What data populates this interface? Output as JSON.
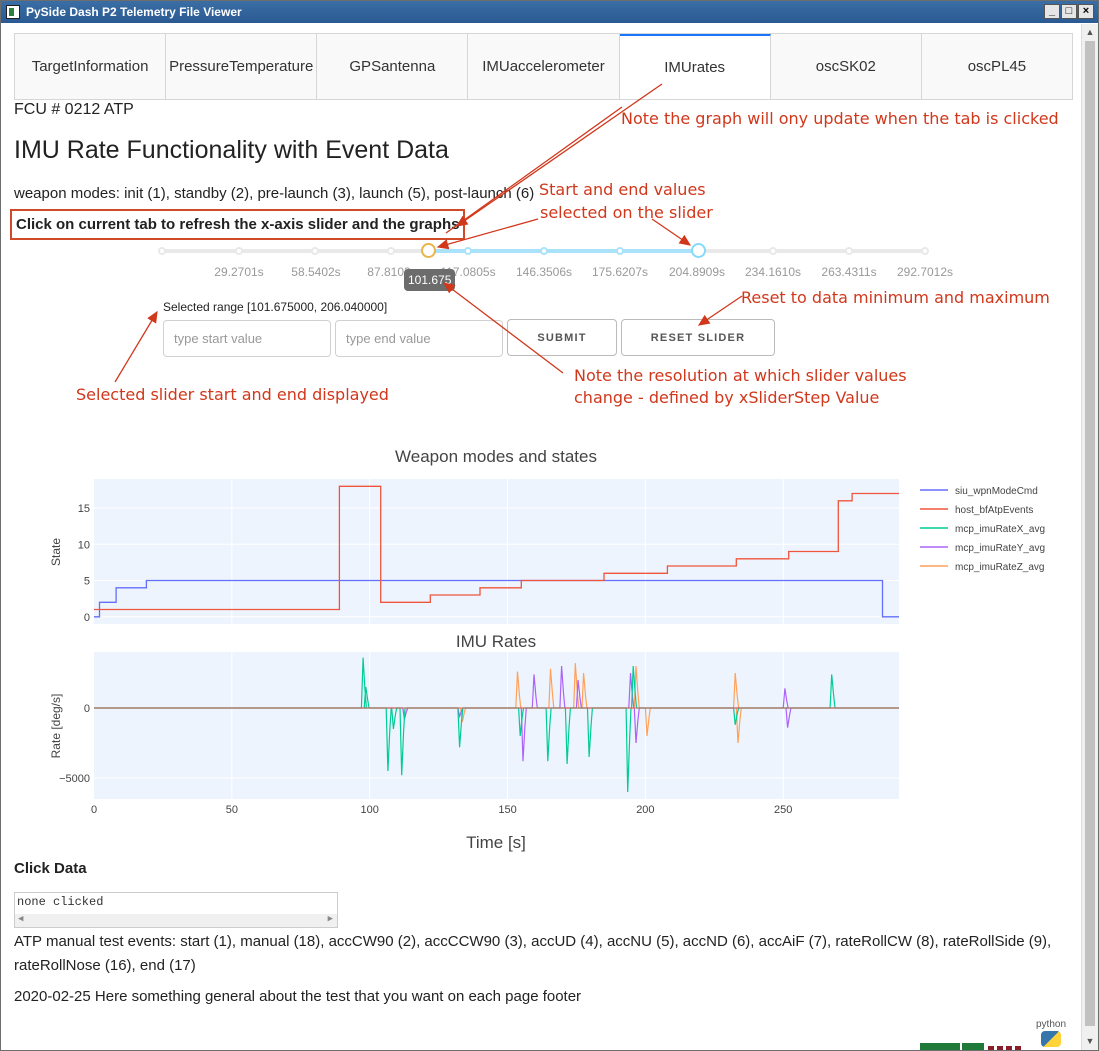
{
  "window": {
    "title": "PySide Dash P2 Telemetry File Viewer",
    "min": "_",
    "max": "□",
    "close": "×"
  },
  "tabs": [
    {
      "label": "TargetInformation",
      "active": false
    },
    {
      "label": "PressureTemperature",
      "active": false
    },
    {
      "label": "GPSantenna",
      "active": false
    },
    {
      "label": "IMUaccelerometer",
      "active": false
    },
    {
      "label": "IMUrates",
      "active": true
    },
    {
      "label": "oscSK02",
      "active": false
    },
    {
      "label": "oscPL45",
      "active": false
    }
  ],
  "header": {
    "fcu": "FCU # 0212 ATP",
    "title": "IMU Rate Functionality with Event Data",
    "modes": "weapon modes: init (1), standby (2), pre-launch (3), launch (5), post-launch (6)",
    "refresh_note": "Click on current tab to refresh the x-axis slider and the graphs"
  },
  "slider": {
    "marks": [
      "29.2701s",
      "58.5402s",
      "87.8103s",
      "117.0805s",
      "146.3506s",
      "175.6207s",
      "204.8909s",
      "234.1610s",
      "263.4311s",
      "292.7012s"
    ],
    "tooltip": "101.675",
    "selected_range": "Selected range [101.675000, 206.040000]",
    "start_placeholder": "type start value",
    "end_placeholder": "type end value",
    "submit_label": "SUBMIT",
    "reset_label": "RESET SLIDER"
  },
  "annotations": {
    "tab_update": "Note the graph will ony update when the tab is clicked",
    "start_end_1": "Start and end values",
    "start_end_2": "selected on the slider",
    "reset": "Reset to data minimum and maximum",
    "selected_display": "Selected slider start and end displayed",
    "resolution_1": "Note the resolution at which slider values",
    "resolution_2": "change - defined by xSliderStep Value"
  },
  "chart_data": [
    {
      "type": "line",
      "title": "Weapon modes and states",
      "ylabel": "State",
      "xlim": [
        0,
        292
      ],
      "ylim": [
        -1,
        19
      ],
      "yticks": [
        0,
        5,
        10,
        15
      ],
      "grid": true,
      "legend_position": "right",
      "series": [
        {
          "name": "siu_wpnModeCmd",
          "color": "#636efa",
          "x": [
            0,
            2,
            2,
            8,
            8,
            19,
            19,
            286,
            286,
            292
          ],
          "y": [
            0,
            0,
            2,
            2,
            4,
            4,
            5,
            5,
            0,
            0
          ]
        },
        {
          "name": "host_bfAtpEvents",
          "color": "#ef553b",
          "x": [
            0,
            3,
            3,
            89,
            89,
            104,
            104,
            122,
            122,
            128,
            128,
            140,
            140,
            155,
            155,
            185,
            185,
            208,
            208,
            233,
            233,
            252,
            252,
            270,
            270,
            275,
            275,
            292
          ],
          "y": [
            1,
            1,
            1,
            1,
            18,
            18,
            2,
            2,
            3,
            3,
            3,
            3,
            4,
            4,
            5,
            5,
            6,
            6,
            7,
            7,
            8,
            8,
            9,
            9,
            16,
            16,
            17,
            17
          ]
        }
      ]
    },
    {
      "type": "line",
      "title": "IMU Rates",
      "xlabel": "Time [s]",
      "ylabel": "Rate [deg/s]",
      "xlim": [
        0,
        292
      ],
      "ylim": [
        -6500,
        4000
      ],
      "xticks": [
        0,
        50,
        100,
        150,
        200,
        250
      ],
      "yticks": [
        -5000,
        0
      ],
      "grid": true,
      "series": [
        {
          "name": "mcp_imuRateX_avg",
          "color": "#00cc96",
          "events": [
            [
              98,
              3600
            ],
            [
              99,
              1500
            ],
            [
              107,
              -4500
            ],
            [
              109,
              -1500
            ],
            [
              112,
              -4800
            ],
            [
              133,
              -2800
            ],
            [
              155,
              -2000
            ],
            [
              165,
              -3800
            ],
            [
              172,
              -4000
            ],
            [
              180,
              -3500
            ],
            [
              194,
              -6000
            ],
            [
              196,
              3000
            ],
            [
              233,
              -1200
            ],
            [
              268,
              2400
            ]
          ]
        },
        {
          "name": "mcp_imuRateY_avg",
          "color": "#ab63fa",
          "events": [
            [
              113,
              -800
            ],
            [
              133,
              -600
            ],
            [
              156,
              -3800
            ],
            [
              160,
              2400
            ],
            [
              170,
              3000
            ],
            [
              176,
              2000
            ],
            [
              195,
              2500
            ],
            [
              197,
              -2500
            ],
            [
              251,
              1400
            ],
            [
              252,
              -1400
            ]
          ]
        },
        {
          "name": "mcp_imuRateZ_avg",
          "color": "#ffa15a",
          "events": [
            [
              113,
              -700
            ],
            [
              134,
              -1000
            ],
            [
              154,
              2600
            ],
            [
              166,
              2800
            ],
            [
              175,
              3200
            ],
            [
              178,
              2500
            ],
            [
              197,
              3000
            ],
            [
              201,
              -2000
            ],
            [
              233,
              2500
            ],
            [
              234,
              -2500
            ]
          ]
        }
      ]
    }
  ],
  "click_data": {
    "title": "Click Data",
    "value": "none clicked"
  },
  "footer": {
    "atp_events": "ATP manual test events: start (1), manual (18), accCW90 (2), accCCW90 (3), accUD (4), accNU (5), accND (6), accAiF (7), rateRollCW (8), rateRollSide (9), rateRollNose (16), end (17)",
    "note": "2020-02-25 Here something general about the test that you want on each page footer",
    "python_label": "python"
  },
  "colors": {
    "annotation": "#d1371b",
    "tab_accent": "#1975fa",
    "slider_track": "#abe2fb"
  }
}
